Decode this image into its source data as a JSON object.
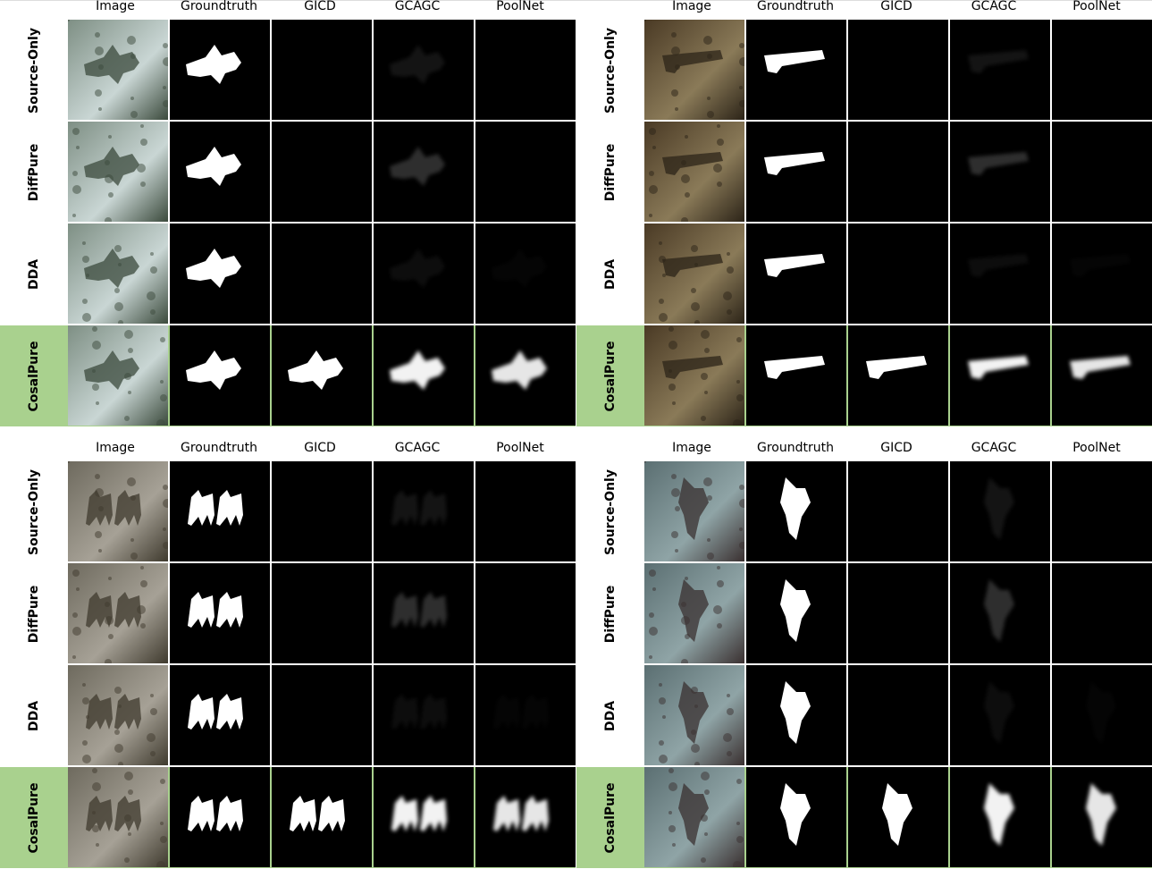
{
  "columns": [
    "Image",
    "Groundtruth",
    "GICD",
    "GCAGC",
    "PoolNet"
  ],
  "rows": [
    "Source-Only",
    "DiffPure",
    "DDA",
    "CosalPure"
  ],
  "highlight_row": "CosalPure",
  "highlight_color": "#a9d18e",
  "panels": [
    {
      "subject": "jet",
      "scene_colors": [
        "#7e8f84",
        "#c9d6d4",
        "#3b4a3c"
      ]
    },
    {
      "subject": "axe",
      "scene_colors": [
        "#4a3a25",
        "#8a7a58",
        "#2c2418"
      ]
    },
    {
      "subject": "camels",
      "scene_colors": [
        "#6e6a5e",
        "#a6a196",
        "#3f3a2e"
      ]
    },
    {
      "subject": "dolphin",
      "scene_colors": [
        "#5b6f72",
        "#8fa4a6",
        "#3a3030"
      ]
    }
  ]
}
